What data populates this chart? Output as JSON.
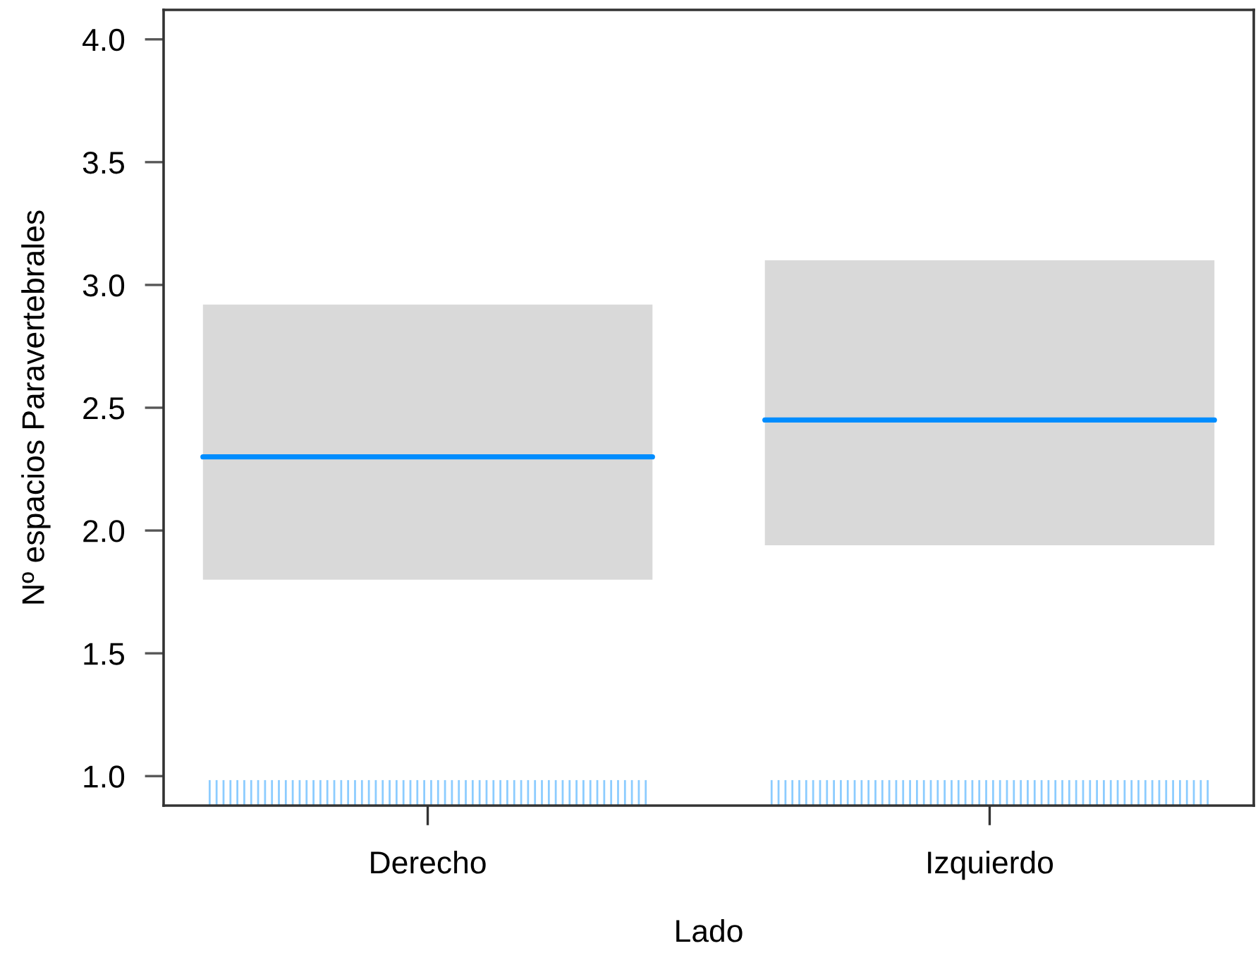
{
  "chart_data": {
    "type": "box",
    "xlabel": "Lado",
    "ylabel": "Nº espacios Paravertebrales",
    "categories": [
      "Derecho",
      "Izquierdo"
    ],
    "series": [
      {
        "color": "#008dff",
        "colors": [
          "#d9d9d9",
          "#d9d9d9"
        ],
        "boxes": [
          {
            "low": 1.8,
            "q1": 1.8,
            "median": 2.3,
            "q3": 2.92,
            "high": 2.92
          },
          {
            "low": 1.94,
            "q1": 1.94,
            "median": 2.45,
            "q3": 3.1,
            "high": 3.1
          }
        ]
      }
    ],
    "ylim": [
      0.88,
      4.12
    ],
    "yticks": [
      {
        "value": 1,
        "label": "1.0"
      },
      1.5,
      {
        "value": 2,
        "label": "2.0"
      },
      2.5,
      {
        "value": 3,
        "label": "3.0"
      },
      3.5,
      {
        "value": 4,
        "label": "4.0"
      }
    ]
  }
}
